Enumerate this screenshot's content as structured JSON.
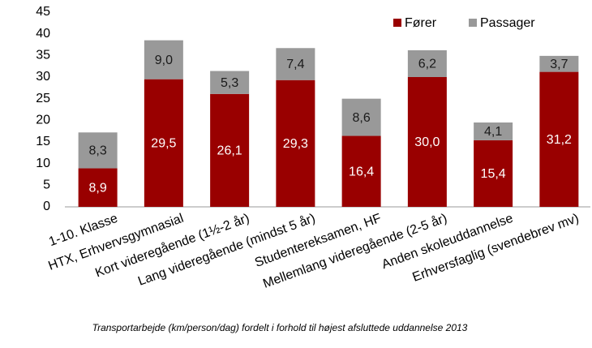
{
  "chart_data": {
    "type": "stacked_bar",
    "caption": "Transportarbejde (km/person/dag) fordelt  i forhold til højest afsluttede uddannelse 2013",
    "categories": [
      "1-10. Klasse",
      "HTX, Erhvervsgymnasial",
      "Kort videregående (1½-2 år)",
      "Lang videregående (mindst 5 år)",
      "Studentereksamen, HF",
      "Mellemlang videregående (2-5 år)",
      "Anden skoleuddannelse",
      "Erhversfaglig (svendebrev mv)"
    ],
    "series": [
      {
        "name": "Fører",
        "color": "#990000",
        "label_color": "#ffffff",
        "values": [
          8.9,
          29.5,
          26.1,
          29.3,
          16.4,
          30.0,
          15.4,
          31.2
        ],
        "value_labels": [
          "8,9",
          "29,5",
          "26,1",
          "29,3",
          "16,4",
          "30,0",
          "15,4",
          "31,2"
        ]
      },
      {
        "name": "Passager",
        "color": "#999999",
        "label_color": "#1a1a1a",
        "values": [
          8.3,
          9.0,
          5.3,
          7.4,
          8.6,
          6.2,
          4.1,
          3.7
        ],
        "value_labels": [
          "8,3",
          "9,0",
          "5,3",
          "7,4",
          "8,6",
          "6,2",
          "4,1",
          "3,7"
        ]
      }
    ],
    "ylim": [
      0,
      45
    ],
    "yticks": [
      0,
      5,
      10,
      15,
      20,
      25,
      30,
      35,
      40,
      45
    ],
    "grid": false,
    "legend": "top-right"
  }
}
